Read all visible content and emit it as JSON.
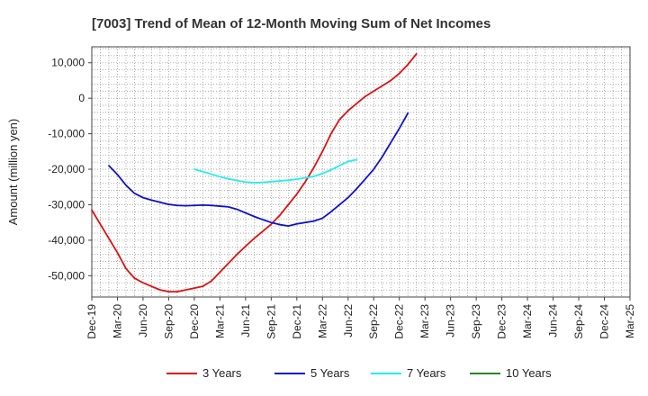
{
  "chart_data": {
    "type": "line",
    "title": "[7003]  Trend of Mean of 12-Month Moving Sum of Net Incomes",
    "xlabel": "",
    "ylabel": "Amount (million yen)",
    "ylim": [
      -56000,
      14500
    ],
    "yticks": [
      10000,
      0,
      -10000,
      -20000,
      -30000,
      -40000,
      -50000
    ],
    "ytick_labels": [
      "10,000",
      "0",
      "-10,000",
      "-20,000",
      "-30,000",
      "-40,000",
      "-50,000"
    ],
    "xticks": [
      "Dec-19",
      "Mar-20",
      "Jun-20",
      "Sep-20",
      "Dec-20",
      "Mar-21",
      "Jun-21",
      "Sep-21",
      "Dec-21",
      "Mar-22",
      "Jun-22",
      "Sep-22",
      "Dec-22",
      "Mar-23",
      "Jun-23",
      "Sep-23",
      "Dec-23",
      "Mar-24",
      "Jun-24",
      "Sep-24",
      "Dec-24",
      "Mar-25"
    ],
    "grid": true,
    "legend_position": "bottom",
    "series": [
      {
        "name": "3 Years",
        "color": "#dd1111",
        "values": [
          [
            0,
            -31500
          ],
          [
            1,
            -35500
          ],
          [
            2,
            -39500
          ],
          [
            3,
            -43500
          ],
          [
            4,
            -48000
          ],
          [
            5,
            -50700
          ],
          [
            6,
            -52000
          ],
          [
            7,
            -53000
          ],
          [
            8,
            -54000
          ],
          [
            9,
            -54500
          ],
          [
            10,
            -54500
          ],
          [
            11,
            -54000
          ],
          [
            12,
            -53500
          ],
          [
            13,
            -53000
          ],
          [
            14,
            -51500
          ],
          [
            15,
            -49000
          ],
          [
            16,
            -46500
          ],
          [
            17,
            -44000
          ],
          [
            18,
            -41700
          ],
          [
            19,
            -39500
          ],
          [
            20,
            -37500
          ],
          [
            21,
            -35500
          ],
          [
            22,
            -33000
          ],
          [
            23,
            -30000
          ],
          [
            24,
            -27000
          ],
          [
            25,
            -23500
          ],
          [
            26,
            -19500
          ],
          [
            27,
            -15000
          ],
          [
            28,
            -10000
          ],
          [
            29,
            -6000
          ],
          [
            30,
            -3500
          ],
          [
            31,
            -1500
          ],
          [
            32,
            500
          ],
          [
            33,
            2000
          ],
          [
            34,
            3500
          ],
          [
            35,
            5000
          ],
          [
            36,
            7000
          ],
          [
            37,
            9500
          ],
          [
            38,
            12500
          ]
        ]
      },
      {
        "name": "5 Years",
        "color": "#1111cc",
        "values": [
          [
            2,
            -19000
          ],
          [
            3,
            -21500
          ],
          [
            4,
            -24500
          ],
          [
            5,
            -26800
          ],
          [
            6,
            -28000
          ],
          [
            7,
            -28700
          ],
          [
            8,
            -29300
          ],
          [
            9,
            -29900
          ],
          [
            10,
            -30200
          ],
          [
            11,
            -30300
          ],
          [
            12,
            -30200
          ],
          [
            13,
            -30100
          ],
          [
            14,
            -30200
          ],
          [
            15,
            -30400
          ],
          [
            16,
            -30600
          ],
          [
            17,
            -31300
          ],
          [
            18,
            -32300
          ],
          [
            19,
            -33300
          ],
          [
            20,
            -34200
          ],
          [
            21,
            -35000
          ],
          [
            22,
            -35600
          ],
          [
            23,
            -36000
          ],
          [
            24,
            -35400
          ],
          [
            25,
            -35000
          ],
          [
            26,
            -34600
          ],
          [
            27,
            -33800
          ],
          [
            28,
            -32000
          ],
          [
            29,
            -30000
          ],
          [
            30,
            -28000
          ],
          [
            31,
            -25500
          ],
          [
            32,
            -22800
          ],
          [
            33,
            -20000
          ],
          [
            34,
            -16500
          ],
          [
            35,
            -12500
          ],
          [
            36,
            -8500
          ],
          [
            37,
            -4200
          ]
        ]
      },
      {
        "name": "7 Years",
        "color": "#22eeee",
        "values": [
          [
            12,
            -20000
          ],
          [
            13,
            -20700
          ],
          [
            14,
            -21400
          ],
          [
            15,
            -22100
          ],
          [
            16,
            -22700
          ],
          [
            17,
            -23200
          ],
          [
            18,
            -23600
          ],
          [
            19,
            -23800
          ],
          [
            20,
            -23700
          ],
          [
            21,
            -23500
          ],
          [
            22,
            -23300
          ],
          [
            23,
            -23100
          ],
          [
            24,
            -22800
          ],
          [
            25,
            -22400
          ],
          [
            26,
            -22000
          ],
          [
            27,
            -21200
          ],
          [
            28,
            -20200
          ],
          [
            29,
            -19000
          ],
          [
            30,
            -17800
          ],
          [
            31,
            -17300
          ]
        ]
      },
      {
        "name": "10 Years",
        "color": "#228822",
        "values": []
      }
    ]
  }
}
